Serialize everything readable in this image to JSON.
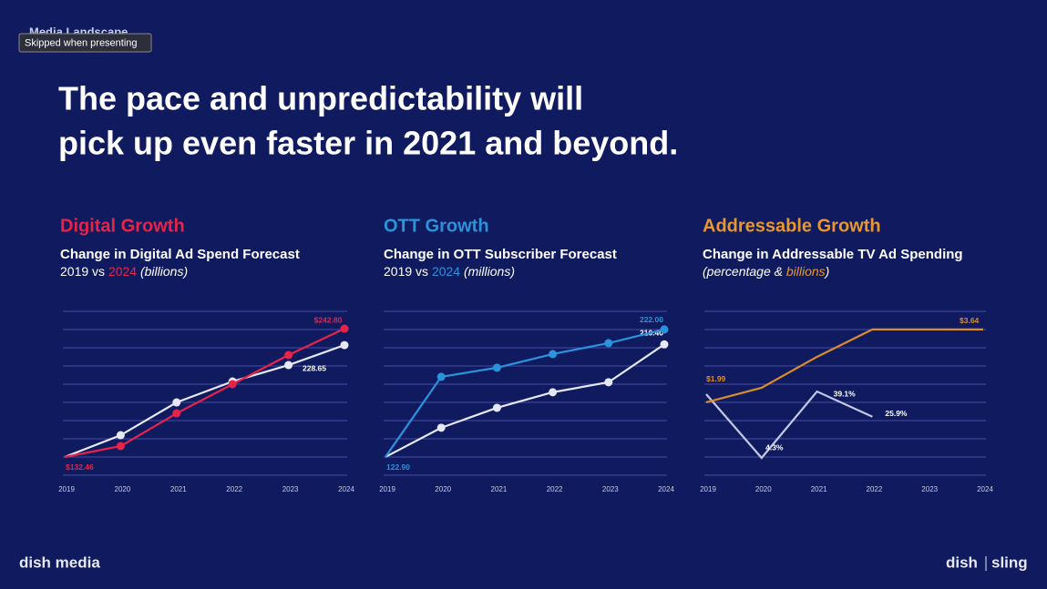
{
  "slide": {
    "section": "Media Landscape",
    "tooltip": "Skipped when presenting",
    "title_lines": [
      "The pace and unpredictability will",
      "pick up even faster in 2021 and beyond."
    ],
    "logo_left": "dish media",
    "logo_right": "dish",
    "logo_right_2": "sling"
  },
  "chart_data": [
    {
      "type": "line",
      "heading": "Digital Growth",
      "heading_color": "#e8234a",
      "title": "Change in Digital Ad Spend Forecast",
      "caption": [
        "vs",
        "(billions)"
      ],
      "categories": [
        "2019",
        "2020",
        "2021",
        "2022",
        "2023",
        "2024"
      ],
      "ylim": [
        116.8,
        257.7
      ],
      "markers": true,
      "series": [
        {
          "name": "2019",
          "color": "#e6e8f5",
          "values": [
            132.46,
            151.2,
            179.4,
            197.4,
            211.5,
            228.65
          ],
          "value_labels": [
            null,
            null,
            null,
            null,
            null,
            "228.65"
          ]
        },
        {
          "name": "2024",
          "color": "#e8234a",
          "values": [
            132.46,
            141.8,
            170.0,
            195.1,
            220.1,
            242.8
          ],
          "value_labels": [
            "$132.46",
            null,
            null,
            null,
            null,
            "$242.80"
          ]
        }
      ]
    },
    {
      "type": "line",
      "heading": "OTT Growth",
      "heading_color": "#2a93dc",
      "title": "Change in OTT Subscriber Forecast",
      "caption": [
        "vs",
        "(millions)"
      ],
      "categories": [
        "2019",
        "2020",
        "2021",
        "2022",
        "2023",
        "2024"
      ],
      "ylim": [
        108.7,
        236.1
      ],
      "markers": true,
      "series": [
        {
          "name": "2019",
          "color": "#e6e8f5",
          "values": [
            122.9,
            145.6,
            161.1,
            173.2,
            181.0,
            210.4
          ],
          "value_labels": [
            null,
            null,
            null,
            null,
            null,
            "210.40"
          ]
        },
        {
          "name": "2024",
          "color": "#2a93dc",
          "values": [
            122.9,
            185.2,
            192.3,
            202.9,
            211.4,
            222.0
          ],
          "value_labels": [
            "122.90",
            null,
            null,
            null,
            null,
            "222.00"
          ]
        }
      ]
    },
    {
      "type": "line",
      "heading": "Addressable Growth",
      "heading_color": "#e8962f",
      "title": "Change in Addressable TV Ad Spending",
      "caption": [
        "(",
        "&",
        ")"
      ],
      "categories": [
        "2019",
        "2020",
        "2021",
        "2022",
        "2023",
        "2024"
      ],
      "ylim": [
        0.34,
        4.05
      ],
      "y2lim": [
        -4.76,
        81.1
      ],
      "markers": false,
      "series": [
        {
          "name": "percentage",
          "color": "#c4c7e4",
          "axis": "y2",
          "values": [
            37.7,
            4.3,
            39.1,
            25.9,
            null,
            null
          ],
          "value_labels": [
            null,
            "4.3%",
            "39.1%",
            "25.9%",
            null,
            null
          ]
        },
        {
          "name": "billions",
          "color": "#d98c2e",
          "values": [
            1.99,
            2.32,
            3.02,
            3.64,
            3.64,
            3.64
          ],
          "value_labels": [
            "$1.99",
            null,
            null,
            null,
            null,
            "$3.64"
          ]
        }
      ]
    }
  ]
}
